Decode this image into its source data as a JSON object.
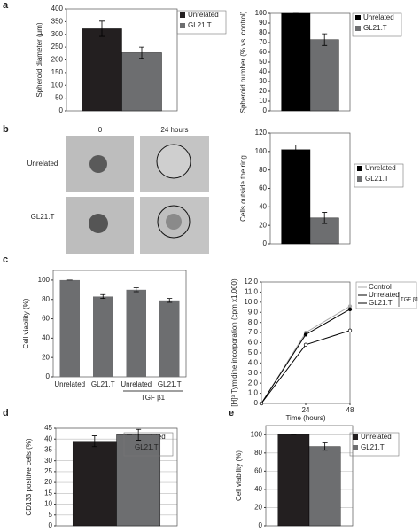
{
  "panel_labels": [
    "a",
    "b",
    "c",
    "d",
    "e"
  ],
  "images": {
    "columns": [
      "0",
      "24 hours"
    ],
    "rows": [
      "Unrelated",
      "GL21.T"
    ]
  },
  "chart_data": [
    {
      "type": "bar",
      "ylabel": "Spheroid diameter (μm)",
      "ylim": [
        0,
        400
      ],
      "yticks": [
        0,
        50,
        100,
        150,
        200,
        250,
        300,
        350,
        400
      ],
      "series": [
        {
          "name": "Unrelated",
          "color": "#231f20",
          "values": [
            322
          ],
          "errors": [
            30
          ]
        },
        {
          "name": "GL21.T",
          "color": "#6d6e70",
          "values": [
            228
          ],
          "errors": [
            22
          ]
        }
      ]
    },
    {
      "type": "bar",
      "ylabel": "Spheroid number (% vs. control)",
      "ylim": [
        0,
        100
      ],
      "yticks": [
        0,
        10,
        20,
        30,
        40,
        50,
        60,
        70,
        80,
        90,
        100
      ],
      "series": [
        {
          "name": "Unrelated",
          "color": "#000000",
          "values": [
            100
          ],
          "errors": [
            0
          ]
        },
        {
          "name": "GL21.T",
          "color": "#6d6e70",
          "values": [
            73
          ],
          "errors": [
            6
          ]
        }
      ]
    },
    {
      "type": "bar",
      "ylabel": "Cells outside the ring",
      "ylim": [
        0,
        120
      ],
      "yticks": [
        0,
        20,
        40,
        60,
        80,
        100,
        120
      ],
      "series": [
        {
          "name": "Unrelated",
          "color": "#000000",
          "values": [
            102
          ],
          "errors": [
            5
          ]
        },
        {
          "name": "GL21.T",
          "color": "#6d6e70",
          "values": [
            28
          ],
          "errors": [
            6
          ]
        }
      ]
    },
    {
      "type": "bar",
      "ylabel": "Cell viability (%)",
      "ylim": [
        0,
        110
      ],
      "yticks": [
        0,
        20,
        40,
        60,
        80,
        100
      ],
      "categories": [
        "Unrelated",
        "GL21.T",
        "Unrelated",
        "GL21.T"
      ],
      "values": [
        100,
        83,
        90,
        79
      ],
      "errors": [
        0,
        2,
        2,
        2
      ],
      "color": "#6d6e70",
      "group_label": "TGF β1"
    },
    {
      "type": "line",
      "ylabel": "[H]³ Tymidine incorporation (cpm x1,000)",
      "xlabel": "Time (hours)",
      "xlim": [
        0,
        48
      ],
      "x": [
        0,
        24,
        48
      ],
      "xticks": [
        24,
        48
      ],
      "ylim": [
        0,
        12
      ],
      "yticks": [
        0,
        {
          "value": 1,
          "label": "1.0"
        },
        {
          "value": 2,
          "label": "2.0"
        },
        {
          "value": 3,
          "label": "3.0"
        },
        {
          "value": 4,
          "label": "4.0"
        },
        {
          "value": 5,
          "label": "5.0"
        },
        {
          "value": 6,
          "label": "6.0"
        },
        {
          "value": 7,
          "label": "7.0"
        },
        {
          "value": 8,
          "label": "8.0"
        },
        {
          "value": 9,
          "label": "9.0"
        },
        {
          "value": 10,
          "label": "10.0"
        },
        {
          "value": 11,
          "label": "11.0"
        },
        {
          "value": 12,
          "label": "12.0"
        }
      ],
      "series": [
        {
          "name": "Control",
          "color": "#aaaaaa",
          "values": [
            0,
            7.0,
            9.6
          ]
        },
        {
          "name": "Unrelated",
          "color": "#000000",
          "values": [
            0,
            6.8,
            9.3
          ]
        },
        {
          "name": "GL21.T",
          "color": "#000000",
          "values": [
            0,
            5.8,
            7.2
          ]
        }
      ],
      "legend_group_label": "TGF β1"
    },
    {
      "type": "bar",
      "ylabel": "CD133 positive cells (%)",
      "ylim": [
        0,
        45
      ],
      "yticks": [
        0,
        5,
        10,
        15,
        20,
        25,
        30,
        35,
        40,
        45
      ],
      "grid": true,
      "series": [
        {
          "name": "Unrelated",
          "color": "#231f20",
          "values": [
            39
          ],
          "errors": [
            2.5
          ]
        },
        {
          "name": "GL21.T",
          "color": "#6d6e70",
          "values": [
            42
          ],
          "errors": [
            2.5
          ]
        }
      ]
    },
    {
      "type": "bar",
      "ylabel": "Cell viability (%)",
      "ylim": [
        0,
        110
      ],
      "yticks": [
        0,
        20,
        40,
        60,
        80,
        100
      ],
      "grid": true,
      "series": [
        {
          "name": "Unrelated",
          "color": "#231f20",
          "values": [
            100
          ],
          "errors": [
            0
          ]
        },
        {
          "name": "GL21.T",
          "color": "#6d6e70",
          "values": [
            87
          ],
          "errors": [
            4
          ]
        }
      ]
    }
  ]
}
